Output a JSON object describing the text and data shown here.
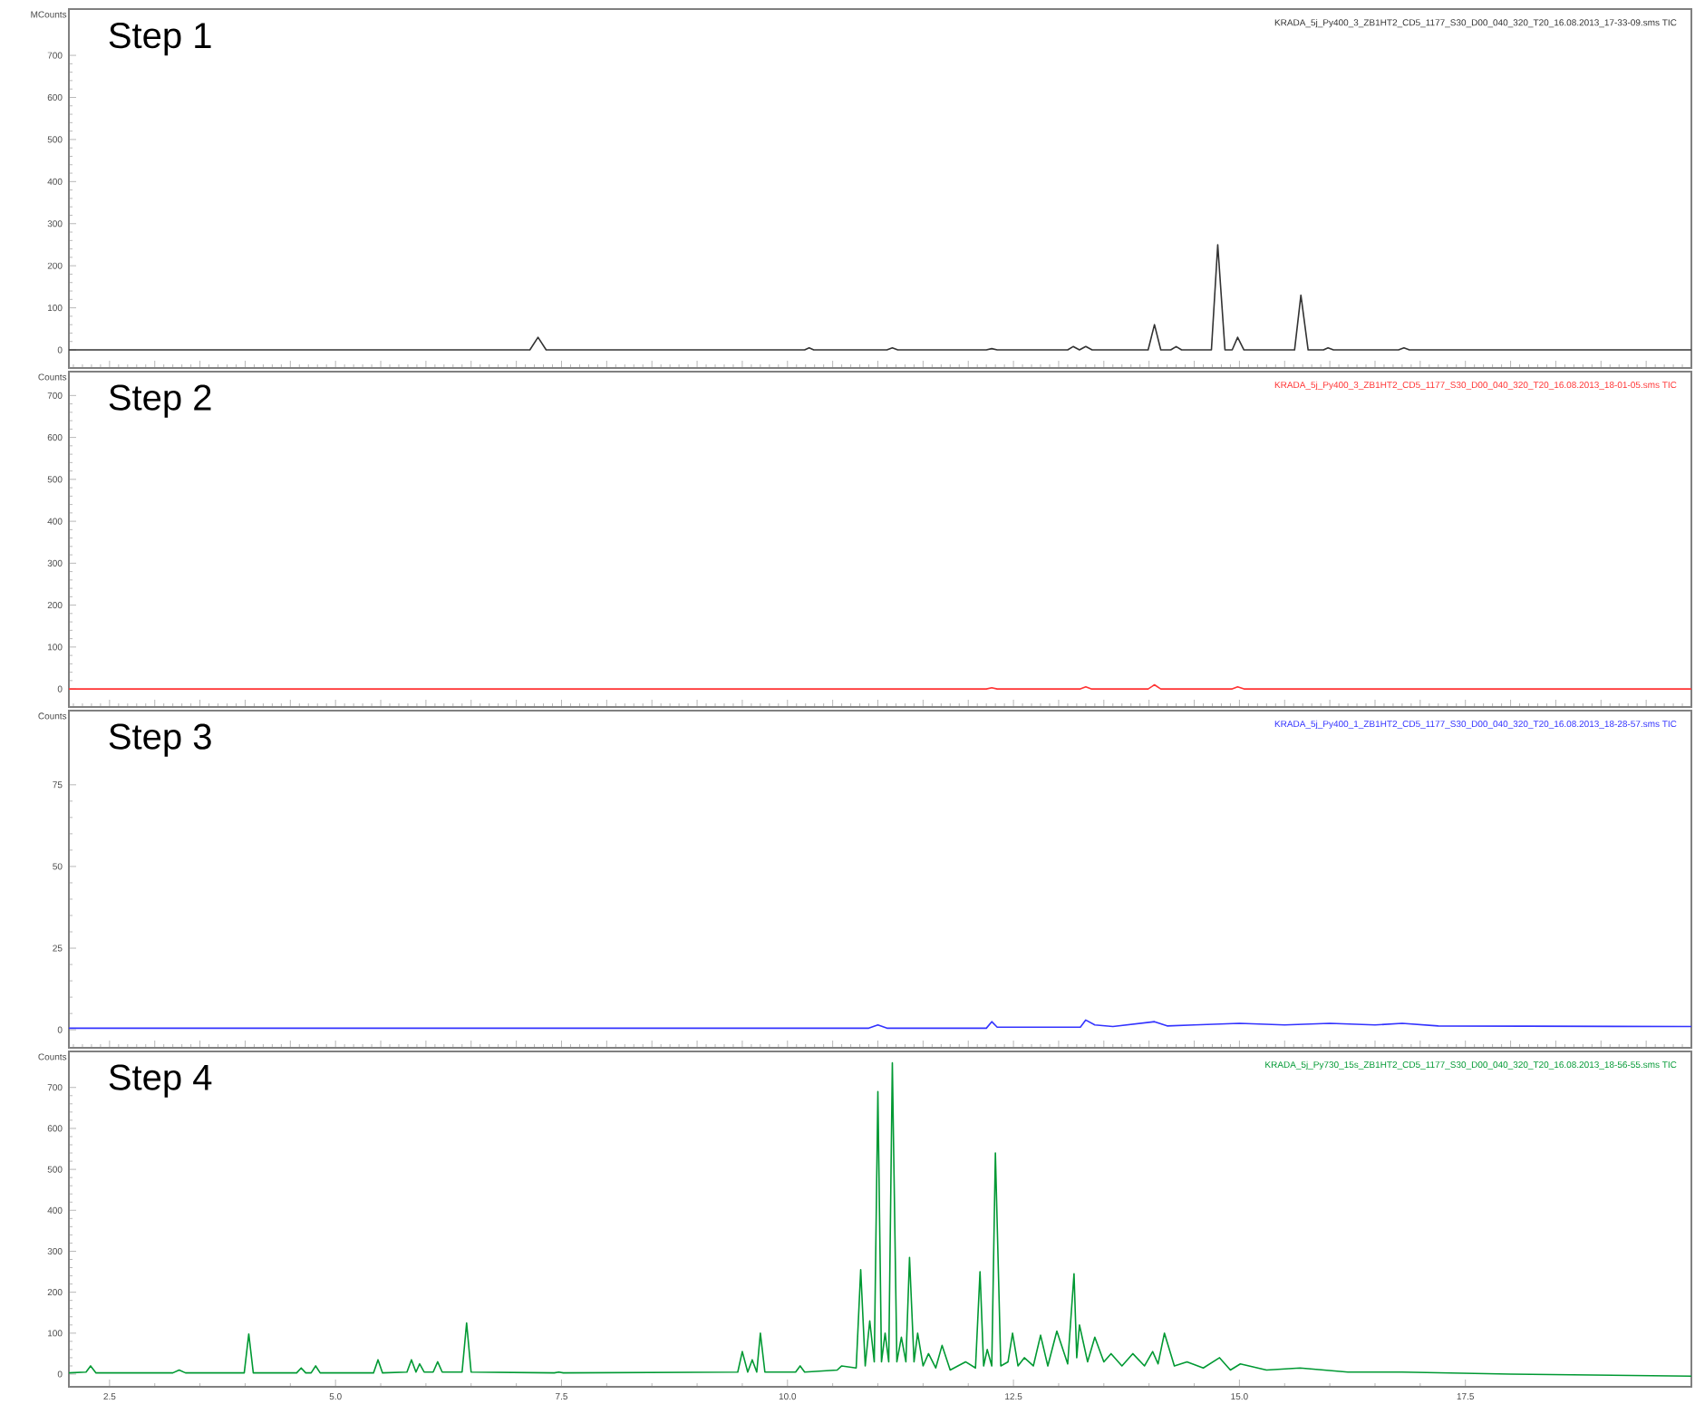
{
  "chart_data": [
    {
      "type": "line",
      "title": "Step 1",
      "ylabel": "MCounts",
      "annotations": [
        "KRADA_5j_Py400_3_ZB1HT2_CD5_1177_S30_D00_040_320_T20_16.08.2013_17-33-09.sms TIC"
      ],
      "color": "#333333",
      "tick_labels": "y",
      "xlim": [
        2.05,
        20
      ],
      "ylim": [
        -43,
        810
      ],
      "yticks": [
        0,
        100,
        200,
        300,
        400,
        500,
        600,
        700
      ],
      "x": [
        2.05,
        7.15,
        7.24,
        7.33,
        10.19,
        10.24,
        10.29,
        11.1,
        11.16,
        11.22,
        12.2,
        12.26,
        12.32,
        13.1,
        13.16,
        13.23,
        13.3,
        13.37,
        13.99,
        14.06,
        14.13,
        14.24,
        14.3,
        14.36,
        14.69,
        14.76,
        14.84,
        14.92,
        14.98,
        15.05,
        15.61,
        15.68,
        15.76,
        15.93,
        15.98,
        16.04,
        16.76,
        16.82,
        16.88,
        20
      ],
      "values": [
        0,
        0,
        30,
        0,
        0,
        5,
        0,
        0,
        5,
        0,
        0,
        3,
        0,
        0,
        8,
        0,
        8,
        0,
        0,
        60,
        0,
        0,
        8,
        0,
        0,
        250,
        0,
        0,
        30,
        0,
        0,
        130,
        0,
        0,
        5,
        0,
        0,
        5,
        0,
        0
      ]
    },
    {
      "type": "line",
      "title": "Step 2",
      "ylabel": "Counts",
      "annotations": [
        "KRADA_5j_Py400_3_ZB1HT2_CD5_1177_S30_D00_040_320_T20_16.08.2013_18-01-05.sms TIC"
      ],
      "color": "#ff3333",
      "tick_labels": "y",
      "xlim": [
        2.05,
        20
      ],
      "ylim": [
        -43,
        757
      ],
      "yticks": [
        0,
        100,
        200,
        300,
        400,
        500,
        600,
        700
      ],
      "x": [
        2.05,
        12.2,
        12.26,
        12.32,
        13.24,
        13.3,
        13.36,
        13.99,
        14.06,
        14.13,
        14.92,
        14.98,
        15.05,
        20
      ],
      "values": [
        0,
        0,
        3,
        0,
        0,
        5,
        0,
        0,
        10,
        0,
        0,
        5,
        0,
        0
      ]
    },
    {
      "type": "line",
      "title": "Step 3",
      "ylabel": "Counts",
      "annotations": [
        "KRADA_5j_Py400_1_ZB1HT2_CD5_1177_S30_D00_040_320_T20_16.08.2013_18-28-57.sms TIC"
      ],
      "color": "#3333ff",
      "tick_labels": "y",
      "xlim": [
        2.05,
        20
      ],
      "ylim": [
        -5.5,
        97.7
      ],
      "yticks": [
        0,
        25,
        50,
        75
      ],
      "x": [
        2.05,
        10.9,
        11.0,
        11.1,
        12.2,
        12.26,
        12.32,
        13.24,
        13.3,
        13.4,
        13.6,
        14.06,
        14.2,
        14.5,
        15.0,
        15.5,
        16.0,
        16.5,
        16.8,
        17.2,
        20
      ],
      "values": [
        0.5,
        0.5,
        1.5,
        0.5,
        0.5,
        2.5,
        0.8,
        0.8,
        3,
        1.5,
        1,
        2.5,
        1.2,
        1.5,
        2,
        1.5,
        2,
        1.5,
        2,
        1.2,
        1
      ]
    },
    {
      "type": "line",
      "title": "Step 4",
      "ylabel": "Counts",
      "annotations": [
        "KRADA_5j_Py730_15s_ZB1HT2_CD5_1177_S30_D00_040_320_T20_16.08.2013_18-56-55.sms TIC"
      ],
      "color": "#009933",
      "xlim": [
        2.05,
        20
      ],
      "ylim": [
        -31,
        788
      ],
      "xticks": [
        {
          "value": 2.5,
          "label": "2.5"
        },
        {
          "value": 5,
          "label": "5.0"
        },
        {
          "value": 7.5,
          "label": "7.5"
        },
        {
          "value": 10,
          "label": "10.0"
        },
        {
          "value": 12.5,
          "label": "12.5"
        },
        {
          "value": 15,
          "label": "15.0"
        },
        {
          "value": 17.5,
          "label": "17.5"
        }
      ],
      "yticks": [
        0,
        100,
        200,
        300,
        400,
        500,
        600,
        700
      ],
      "x": [
        2.05,
        2.24,
        2.29,
        2.35,
        3.2,
        3.27,
        3.34,
        3.99,
        4.04,
        4.09,
        4.57,
        4.62,
        4.67,
        4.73,
        4.78,
        4.83,
        5.42,
        5.47,
        5.52,
        5.79,
        5.84,
        5.89,
        5.93,
        5.98,
        6.08,
        6.13,
        6.18,
        6.4,
        6.45,
        6.5,
        7.42,
        7.47,
        7.52,
        9.45,
        9.5,
        9.56,
        9.61,
        9.66,
        9.7,
        9.75,
        10.09,
        10.14,
        10.19,
        10.55,
        10.6,
        10.76,
        10.81,
        10.86,
        10.91,
        10.96,
        11.0,
        11.04,
        11.08,
        11.12,
        11.16,
        11.21,
        11.26,
        11.31,
        11.35,
        11.4,
        11.44,
        11.5,
        11.56,
        11.64,
        11.71,
        11.8,
        11.97,
        12.08,
        12.13,
        12.17,
        12.21,
        12.26,
        12.3,
        12.36,
        12.44,
        12.49,
        12.55,
        12.62,
        12.72,
        12.8,
        12.88,
        12.98,
        13.1,
        13.17,
        13.2,
        13.23,
        13.32,
        13.4,
        13.5,
        13.58,
        13.7,
        13.82,
        13.95,
        14.04,
        14.1,
        14.17,
        14.28,
        14.42,
        14.6,
        14.78,
        14.9,
        15.01,
        15.3,
        15.67,
        16.2,
        16.8,
        18.0,
        20
      ],
      "values": [
        3,
        5,
        20,
        3,
        3,
        10,
        3,
        3,
        98,
        3,
        3,
        15,
        3,
        3,
        20,
        3,
        3,
        35,
        3,
        5,
        35,
        5,
        25,
        5,
        5,
        30,
        5,
        5,
        125,
        5,
        3,
        5,
        3,
        5,
        55,
        5,
        35,
        5,
        100,
        5,
        5,
        20,
        5,
        10,
        20,
        15,
        255,
        20,
        130,
        30,
        690,
        30,
        100,
        30,
        760,
        30,
        90,
        30,
        285,
        30,
        100,
        20,
        50,
        15,
        70,
        10,
        30,
        15,
        250,
        20,
        60,
        20,
        540,
        20,
        30,
        100,
        20,
        40,
        20,
        95,
        20,
        105,
        25,
        245,
        40,
        120,
        30,
        90,
        30,
        50,
        20,
        50,
        20,
        55,
        25,
        100,
        20,
        30,
        15,
        40,
        10,
        25,
        10,
        15,
        5,
        5,
        0,
        -5
      ]
    }
  ]
}
